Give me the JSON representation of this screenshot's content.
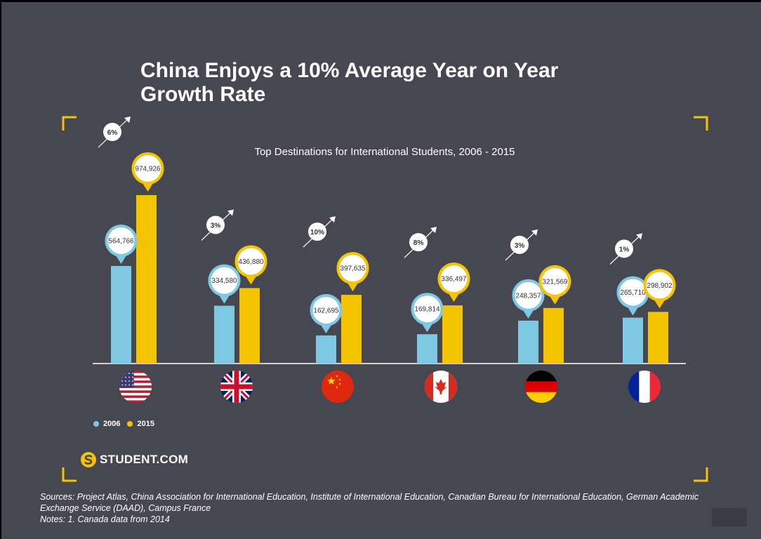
{
  "title": "China Enjoys a 10% Average Year on Year Growth Rate",
  "brand": {
    "name": "STUDENT.COM",
    "icon": "s-logo-icon"
  },
  "colors": {
    "background": "#474752",
    "series_2006": "#7ec8e3",
    "series_2015": "#f5c400",
    "frame": "#f5c400",
    "text": "#ffffff"
  },
  "chart_data": {
    "type": "bar",
    "title": "Top Destinations for International Students, 2006 - 2015",
    "xlabel": "",
    "ylabel": "",
    "ylim": [
      0,
      1100000
    ],
    "categories": [
      "United States",
      "United Kingdom",
      "China",
      "Canada",
      "Germany",
      "France"
    ],
    "flags": [
      "us-flag-icon",
      "uk-flag-icon",
      "china-flag-icon",
      "canada-flag-icon",
      "germany-flag-icon",
      "france-flag-icon"
    ],
    "series": [
      {
        "name": "2006",
        "color": "#7ec8e3",
        "values": [
          564766,
          334580,
          162695,
          169814,
          248357,
          265710
        ]
      },
      {
        "name": "2015",
        "color": "#f5c400",
        "values": [
          974926,
          436880,
          397635,
          336497,
          321569,
          298902
        ]
      }
    ],
    "value_labels_2006": [
      "564,766",
      "334,580",
      "162,695",
      "169,814",
      "248,357",
      "265,710"
    ],
    "value_labels_2015": [
      "974,926",
      "436,880",
      "397,635",
      "336,497",
      "321,569",
      "298,902"
    ],
    "growth_labels": [
      "6%",
      "3%",
      "10%",
      "8%",
      "3%",
      "1%"
    ],
    "legend": [
      "2006",
      "2015"
    ]
  },
  "sources": {
    "line1": "Sources: Project Atlas, China Association for International Education, Institute of International Education, Canadian Bureau for International Education, German Academic",
    "line2": "Exchange Service (DAAD), Campus France",
    "notes": "Notes: 1. Canada data from 2014"
  }
}
